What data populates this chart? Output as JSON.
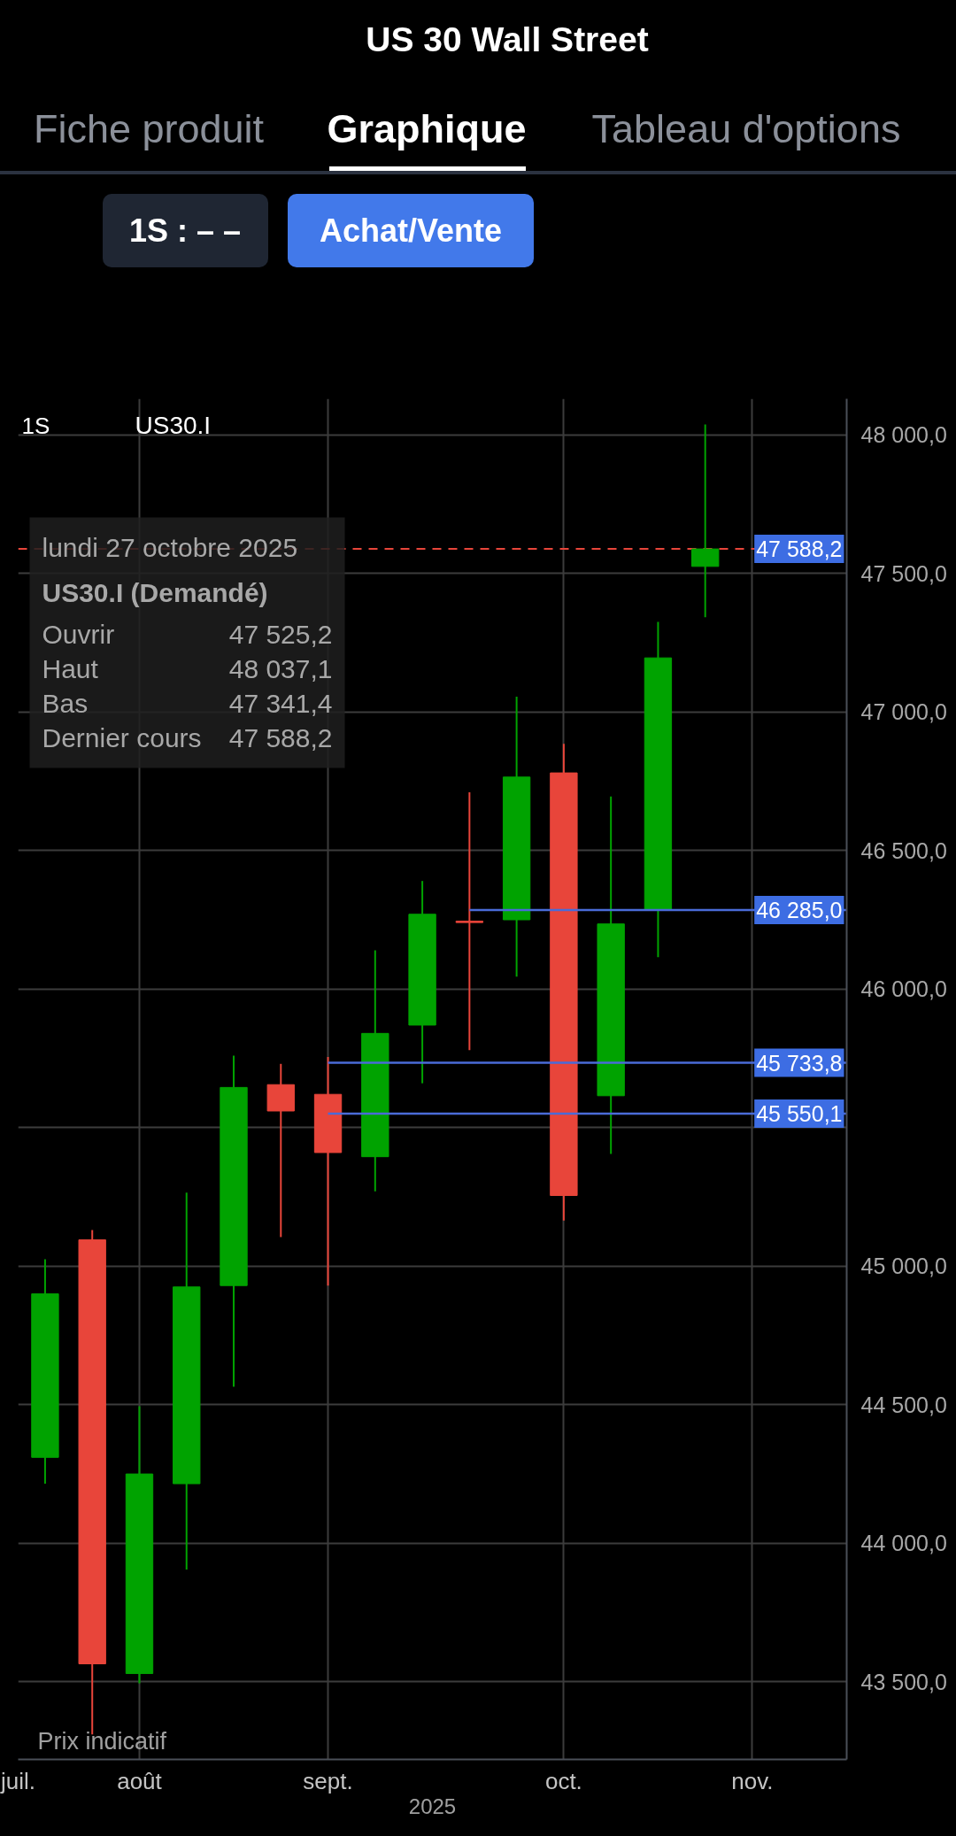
{
  "chart_data": {
    "type": "candlestick",
    "title": "US 30 Wall Street",
    "xlabel": "2025",
    "x": [
      "2025-07-21",
      "2025-07-28",
      "2025-08-04",
      "2025-08-11",
      "2025-08-18",
      "2025-08-25",
      "2025-09-01",
      "2025-09-08",
      "2025-09-15",
      "2025-09-22",
      "2025-09-29",
      "2025-10-06",
      "2025-10-13",
      "2025-10-20",
      "2025-10-27"
    ],
    "ohlc": [
      [
        44310,
        45025,
        44215,
        44900
      ],
      [
        45095,
        45130,
        43310,
        43565
      ],
      [
        43530,
        44495,
        43495,
        44250
      ],
      [
        44215,
        45265,
        43905,
        44925
      ],
      [
        44930,
        45760,
        44565,
        45645
      ],
      [
        45655,
        45730,
        45105,
        45560
      ],
      [
        45620,
        45755,
        44930,
        45410
      ],
      [
        45395,
        46140,
        45270,
        45840
      ],
      [
        45870,
        46390,
        45660,
        46270
      ],
      [
        46245,
        46710,
        45780,
        46240
      ],
      [
        46250,
        47055,
        46045,
        46765
      ],
      [
        46780,
        46885,
        45165,
        45255
      ],
      [
        45615,
        46695,
        45405,
        46235
      ],
      [
        46285,
        47325,
        46115,
        47195
      ],
      [
        47525.2,
        48037.1,
        47341.4,
        47588.2
      ]
    ],
    "colors": [
      "#00a300",
      "#e8453a",
      "#00a300",
      "#00a300",
      "#00a300",
      "#e8453a",
      "#e8453a",
      "#00a300",
      "#00a300",
      "#e8453a",
      "#00a300",
      "#e8453a",
      "#00a300",
      "#00a300",
      "#00a300"
    ],
    "series": [
      {
        "type": "line",
        "color": "#4a6bd8",
        "x": [
          "2025-09-22",
          "2025-11-17"
        ],
        "values": [
          46285.0,
          46285.0
        ],
        "value_labels": [
          null,
          "46 285,0"
        ]
      },
      {
        "type": "line",
        "color": "#4a6bd8",
        "x": [
          "2025-09-01",
          "2025-11-17"
        ],
        "values": [
          45733.8,
          45733.8
        ],
        "value_labels": [
          null,
          "45 733,8"
        ]
      },
      {
        "type": "line",
        "color": "#4a6bd8",
        "x": [
          "2025-09-01",
          "2025-11-17"
        ],
        "values": [
          45550.1,
          45550.1
        ],
        "value_labels": [
          null,
          "45 550,1"
        ]
      }
    ],
    "ref_lines": [
      {
        "axis": "y",
        "value": 47588.2,
        "label": "47 588,2",
        "color": "#e8453a",
        "line_style": "dashed"
      }
    ],
    "xlim": [
      "2025-07-17",
      "2025-11-17"
    ],
    "ylim": [
      43220,
      48130
    ],
    "xticks": [
      {
        "value": "2025-07-17",
        "label": "juil."
      },
      {
        "value": "2025-08-04",
        "label": "août"
      },
      {
        "value": "2025-09-01",
        "label": "sept."
      },
      {
        "value": "2025-10-06",
        "label": "oct."
      },
      {
        "value": "2025-11-03",
        "label": "nov."
      }
    ],
    "yticks": [
      {
        "value": 43500,
        "label": "43 500,0"
      },
      {
        "value": 44000,
        "label": "44 000,0"
      },
      {
        "value": 44500,
        "label": "44 500,0"
      },
      {
        "value": 45000,
        "label": "45 000,0"
      },
      {
        "value": 45500,
        "label": null
      },
      {
        "value": 46000,
        "label": "46 000,0"
      },
      {
        "value": 46500,
        "label": "46 500,0"
      },
      {
        "value": 47000,
        "label": "47 000,0"
      },
      {
        "value": 47500,
        "label": "47 500,0"
      },
      {
        "value": 48000,
        "label": "48 000,0"
      }
    ],
    "grid": true,
    "annotations": [
      "Fiche produit",
      "Graphique",
      "Tableau d'options",
      "1S : – –",
      "Achat/Vente",
      "1S",
      "US30.I",
      "lundi 27 octobre 2025",
      "US30.I (Demandé)",
      "Ouvrir",
      "47 525,2",
      "Haut",
      "48 037,1",
      "Bas",
      "47 341,4",
      "Dernier cours",
      "47 588,2",
      "Prix indicatif"
    ]
  }
}
